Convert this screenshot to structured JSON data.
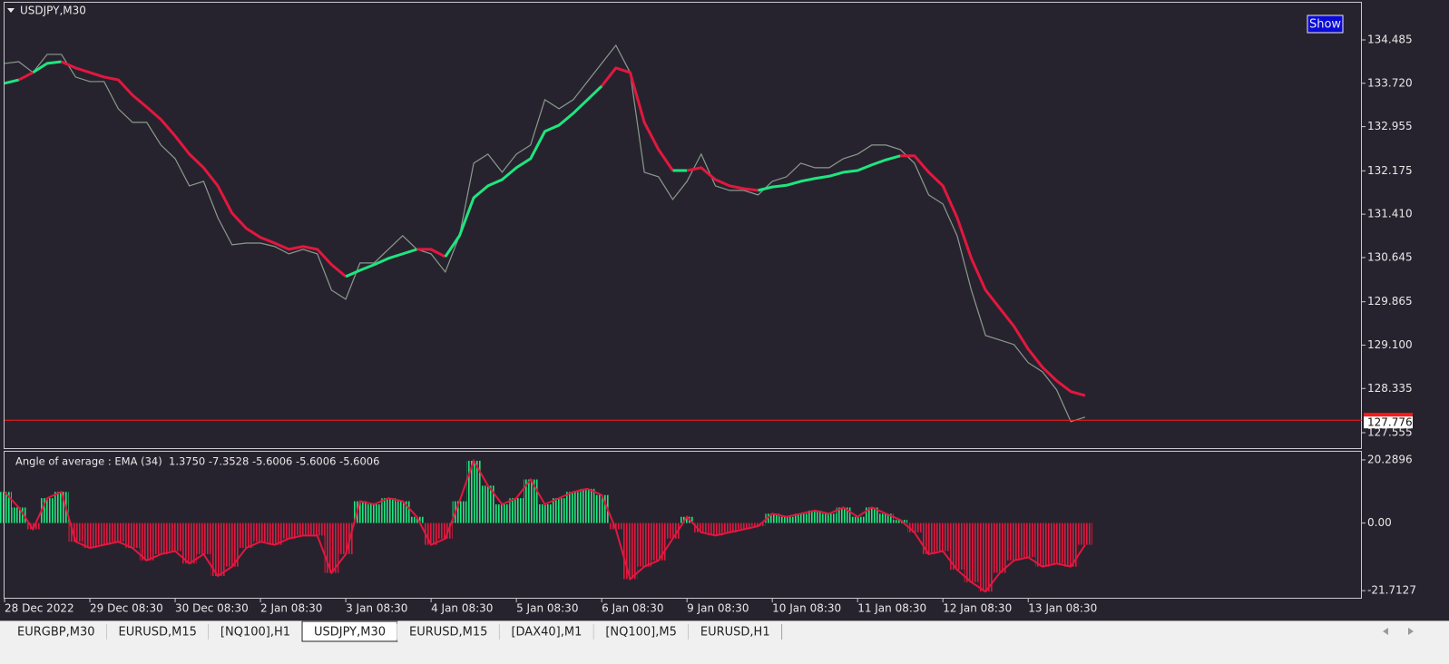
{
  "chart_data": [
    {
      "type": "line",
      "title": "USDJPY,M30",
      "button": "Show",
      "ylim": [
        127.283,
        135.141
      ],
      "yticks": [
        134.485,
        {
          "value": 133.72,
          "label": "133.720"
        },
        132.955,
        132.175,
        {
          "value": 131.41,
          "label": "131.410"
        },
        130.645,
        129.865,
        {
          "value": 129.1,
          "label": "129.100"
        },
        128.335,
        127.555
      ],
      "current_price": 127.776,
      "current_price_color": "#ff1a1a",
      "series": [
        {
          "color": "#8a9a8e",
          "values": [
            134.07,
            134.1,
            133.91,
            134.23,
            134.23,
            133.83,
            133.75,
            133.75,
            133.27,
            133.03,
            133.03,
            132.63,
            132.39,
            131.91,
            131.99,
            131.35,
            130.87,
            130.9,
            130.9,
            130.84,
            130.71,
            130.79,
            130.71,
            130.07,
            129.91,
            130.55,
            130.55,
            130.79,
            131.03,
            130.79,
            130.71,
            130.39,
            131.03,
            132.31,
            132.47,
            132.15,
            132.47,
            132.63,
            133.43,
            133.27,
            133.43,
            133.75,
            134.07,
            134.39,
            133.91,
            132.15,
            132.07,
            131.67,
            131.99,
            132.47,
            131.91,
            131.83,
            131.83,
            131.75,
            131.99,
            132.07,
            132.31,
            132.23,
            132.23,
            132.39,
            132.47,
            132.63,
            132.63,
            132.55,
            132.31,
            131.75,
            131.59,
            131.03,
            130.07,
            129.27,
            129.19,
            129.11,
            128.79,
            128.63,
            128.31,
            127.75,
            127.83
          ]
        },
        {
          "up_color": "#1ee67f",
          "down_color": "#e3173e",
          "values": [
            133.72,
            133.78,
            133.91,
            134.07,
            134.1,
            133.99,
            133.91,
            133.83,
            133.78,
            133.51,
            133.3,
            133.08,
            132.79,
            132.47,
            132.23,
            131.91,
            131.43,
            131.16,
            131.0,
            130.9,
            130.79,
            130.84,
            130.79,
            130.52,
            130.31,
            130.42,
            130.52,
            130.63,
            130.71,
            130.79,
            130.79,
            130.66,
            131.03,
            131.7,
            131.91,
            132.02,
            132.23,
            132.39,
            132.87,
            132.98,
            133.19,
            133.43,
            133.67,
            133.99,
            133.91,
            133.03,
            132.55,
            132.18,
            132.18,
            132.23,
            132.02,
            131.91,
            131.86,
            131.83,
            131.89,
            131.92,
            131.99,
            132.04,
            132.08,
            132.15,
            132.18,
            132.28,
            132.37,
            132.44,
            132.44,
            132.15,
            131.91,
            131.35,
            130.63,
            130.07,
            129.75,
            129.43,
            129.03,
            128.71,
            128.47,
            128.28,
            128.21
          ]
        }
      ]
    },
    {
      "type": "bar",
      "title": "Angle of average : EMA (34)  1.3750 -7.3528 -5.6006 -5.6006 -5.6006",
      "ylim": [
        -24.3,
        22.9
      ],
      "yticks": [
        20.2896,
        {
          "value": 0,
          "label": "0.00"
        },
        -21.7127
      ],
      "up_color": "#1ee67f",
      "down_color": "#e3173e",
      "categories": [
        "28 Dec 2022",
        null,
        null,
        null,
        null,
        null,
        "29 Dec 08:30",
        null,
        null,
        null,
        null,
        null,
        "30 Dec 08:30",
        null,
        null,
        null,
        null,
        null,
        "2 Jan 08:30",
        null,
        null,
        null,
        null,
        null,
        "3 Jan 08:30",
        null,
        null,
        null,
        null,
        null,
        "4 Jan 08:30",
        null,
        null,
        null,
        null,
        null,
        "5 Jan 08:30",
        null,
        null,
        null,
        null,
        null,
        "6 Jan 08:30",
        null,
        null,
        null,
        null,
        null,
        "9 Jan 08:30",
        null,
        null,
        null,
        null,
        null,
        "10 Jan 08:30",
        null,
        null,
        null,
        null,
        null,
        "11 Jan 08:30",
        null,
        null,
        null,
        null,
        null,
        "12 Jan 08:30",
        null,
        null,
        null,
        null,
        null,
        "13 Jan 08:30",
        null,
        null,
        null,
        null
      ],
      "values": [
        10,
        5,
        -2,
        8,
        10,
        -6,
        -8,
        -7,
        -6,
        -8,
        -12,
        -10,
        -9,
        -13,
        -10,
        -17,
        -14,
        -8,
        -6,
        -7,
        -5,
        -4,
        -4,
        -16,
        -10,
        7,
        6,
        8,
        7,
        2,
        -7,
        -5,
        7,
        20,
        12,
        6,
        8,
        14,
        6,
        8,
        10,
        11,
        9,
        -2,
        -18,
        -14,
        -12,
        -5,
        2,
        -3,
        -4,
        -3,
        -2,
        -1,
        3,
        2,
        3,
        4,
        3,
        5,
        2,
        5,
        3,
        1,
        -3,
        -10,
        -9,
        -15,
        -19,
        -22,
        -16,
        -12,
        -11,
        -14,
        -13,
        -14,
        -7
      ]
    }
  ],
  "tabs": [
    "EURGBP,M30",
    "EURUSD,M15",
    "[NQ100],H1",
    "USDJPY,M30",
    "EURUSD,M15",
    "[DAX40],M1",
    "[NQ100],M5",
    "EURUSD,H1"
  ],
  "active_tab": 3
}
